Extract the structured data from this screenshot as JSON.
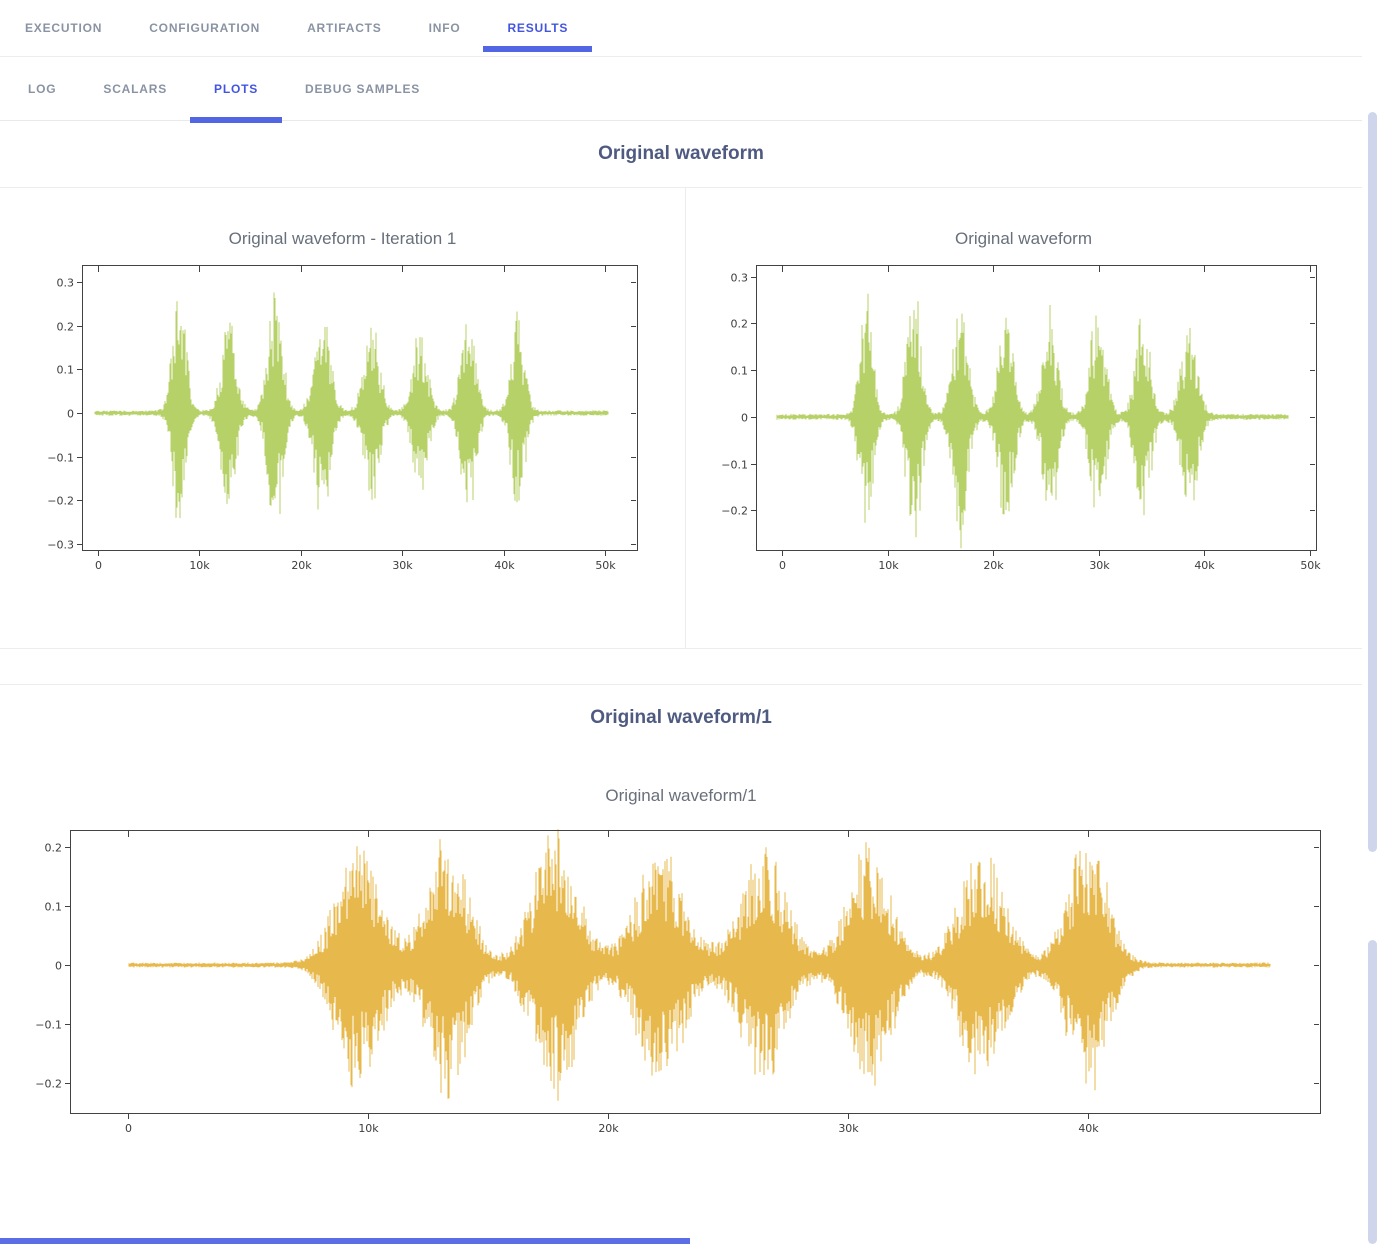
{
  "nav": {
    "tabs": [
      "EXECUTION",
      "CONFIGURATION",
      "ARTIFACTS",
      "INFO",
      "RESULTS"
    ],
    "active_tab": "RESULTS"
  },
  "subnav": {
    "tabs": [
      "LOG",
      "SCALARS",
      "PLOTS",
      "DEBUG SAMPLES"
    ],
    "active_tab": "PLOTS"
  },
  "colors": {
    "accent_blue": "#4355e0",
    "tab_underline": "#5265e3",
    "inactive_tab": "#8a93a4",
    "section_title": "#4e5a80",
    "waveform_green": "#b7d169",
    "waveform_orange": "#e7b94c",
    "scrollbar_thumb": "#cfd6ec"
  },
  "sections": [
    {
      "title": "Original waveform",
      "plots": [
        {
          "type": "line",
          "title": "Original waveform - Iteration 1",
          "color": "#b7d169",
          "xlim": [
            -1580,
            53150
          ],
          "ylim": [
            -0.314,
            0.339
          ],
          "xticks": {
            "values": [
              0,
              10000,
              20000,
              30000,
              40000,
              50000
            ],
            "labels": [
              "0",
              "10k",
              "20k",
              "30k",
              "40k",
              "50k"
            ]
          },
          "yticks": {
            "values": [
              0.3,
              0.2,
              0.1,
              0,
              -0.1,
              -0.2,
              -0.3
            ],
            "labels": [
              "0.3",
              "0.2",
              "0.1",
              "0",
              "−0.1",
              "−0.2",
              "−0.3"
            ]
          },
          "signal_range": [
            -300,
            50300
          ],
          "noise_floor": 0.006,
          "bursts": [
            {
              "c": 8.0,
              "s": 0.62,
              "a": 0.29
            },
            {
              "c": 12.9,
              "s": 0.7,
              "a": 0.215
            },
            {
              "c": 17.5,
              "s": 0.7,
              "a": 0.26
            },
            {
              "c": 22.1,
              "s": 0.75,
              "a": 0.235
            },
            {
              "c": 27.0,
              "s": 0.75,
              "a": 0.195
            },
            {
              "c": 31.8,
              "s": 0.7,
              "a": 0.19
            },
            {
              "c": 36.5,
              "s": 0.7,
              "a": 0.23
            },
            {
              "c": 41.4,
              "s": 0.65,
              "a": 0.215
            }
          ]
        },
        {
          "type": "line",
          "title": "Original waveform",
          "color": "#b7d169",
          "xlim": [
            -2460,
            50570
          ],
          "ylim": [
            -0.285,
            0.325
          ],
          "xticks": {
            "values": [
              0,
              10000,
              20000,
              30000,
              40000,
              50000
            ],
            "labels": [
              "0",
              "10k",
              "20k",
              "30k",
              "40k",
              "50k"
            ]
          },
          "yticks": {
            "values": [
              0.3,
              0.2,
              0.1,
              0,
              -0.1,
              -0.2
            ],
            "labels": [
              "0.3",
              "0.2",
              "0.1",
              "0",
              "−0.1",
              "−0.2"
            ]
          },
          "signal_range": [
            -500,
            48000
          ],
          "noise_floor": 0.006,
          "bursts": [
            {
              "c": 8.0,
              "s": 0.6,
              "a": 0.25
            },
            {
              "c": 12.5,
              "s": 0.65,
              "a": 0.27
            },
            {
              "c": 16.9,
              "s": 0.7,
              "a": 0.26
            },
            {
              "c": 21.2,
              "s": 0.7,
              "a": 0.22
            },
            {
              "c": 25.4,
              "s": 0.7,
              "a": 0.22
            },
            {
              "c": 29.9,
              "s": 0.7,
              "a": 0.225
            },
            {
              "c": 34.2,
              "s": 0.7,
              "a": 0.21
            },
            {
              "c": 38.6,
              "s": 0.75,
              "a": 0.19
            }
          ]
        }
      ]
    },
    {
      "title": "Original waveform/1",
      "plots": [
        {
          "type": "line",
          "title": "Original waveform/1",
          "color": "#e7b94c",
          "xlim": [
            -2420,
            49670
          ],
          "ylim": [
            -0.251,
            0.229
          ],
          "xticks": {
            "values": [
              0,
              10000,
              20000,
              30000,
              40000
            ],
            "labels": [
              "0",
              "10k",
              "20k",
              "30k",
              "40k"
            ]
          },
          "yticks": {
            "values": [
              0.2,
              0.1,
              0,
              -0.1,
              -0.2
            ],
            "labels": [
              "0.2",
              "0.1",
              "0",
              "−0.1",
              "−0.2"
            ]
          },
          "signal_range": [
            0,
            47600
          ],
          "noise_floor": 0.004,
          "bursts": [
            {
              "c": 9.6,
              "s": 0.9,
              "a": 0.2
            },
            {
              "c": 13.3,
              "s": 0.85,
              "a": 0.21
            },
            {
              "c": 17.8,
              "s": 0.9,
              "a": 0.215
            },
            {
              "c": 22.2,
              "s": 1.0,
              "a": 0.185
            },
            {
              "c": 26.5,
              "s": 0.95,
              "a": 0.185
            },
            {
              "c": 30.9,
              "s": 0.9,
              "a": 0.195
            },
            {
              "c": 35.6,
              "s": 0.95,
              "a": 0.18
            },
            {
              "c": 40.0,
              "s": 0.8,
              "a": 0.21
            }
          ]
        }
      ]
    }
  ]
}
